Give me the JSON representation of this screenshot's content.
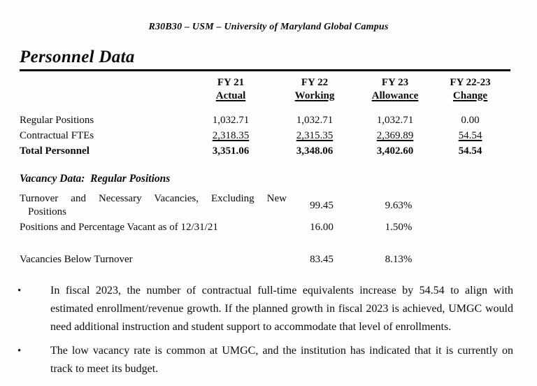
{
  "doc": {
    "header": "R30B30 – USM – University of Maryland Global Campus",
    "title": "Personnel Data"
  },
  "personnel_table": {
    "col_headers": [
      {
        "line1": "FY 21",
        "line2": "Actual"
      },
      {
        "line1": "FY 22",
        "line2": "Working"
      },
      {
        "line1": "FY 23",
        "line2": "Allowance"
      },
      {
        "line1": "FY 22-23",
        "line2": "Change"
      }
    ],
    "rows": [
      {
        "label": "Regular Positions",
        "values": [
          "1,032.71",
          "1,032.71",
          "1,032.71",
          "0.00"
        ]
      },
      {
        "label": "Contractual FTEs",
        "values": [
          "2,318.35",
          "2,315.35",
          "2,369.89",
          "54.54"
        ]
      },
      {
        "label": "Total Personnel",
        "values": [
          "3,351.06",
          "3,348.06",
          "3,402.60",
          "54.54"
        ]
      }
    ]
  },
  "vacancy_section": {
    "heading": "Vacancy Data:  Regular Positions",
    "rows": [
      {
        "label_line1": "Turnover and Necessary Vacancies, Excluding New",
        "label_line2": "Positions",
        "count": "99.45",
        "percent": "9.63%"
      },
      {
        "label_line1": "Positions and Percentage Vacant as of 12/31/21",
        "label_line2": "",
        "count": "16.00",
        "percent": "1.50%"
      },
      {
        "label_line1": "Vacancies Below Turnover",
        "label_line2": "",
        "count": "83.45",
        "percent": "8.13%"
      }
    ]
  },
  "bullets": [
    {
      "marker": "•",
      "text": "In fiscal 2023, the number of contractual full-time equivalents increase by 54.54 to align with estimated enrollment/revenue growth. If the planned growth in fiscal 2023 is achieved, UMGC would need additional instruction and student support to accommodate that level of enrollments."
    },
    {
      "marker": "•",
      "text": "The low vacancy rate is common at UMGC, and the institution has indicated that it is currently on track to meet its budget."
    }
  ],
  "colors": {
    "text": "#0c0c0c",
    "background": "#fdfdfd",
    "rule": "#0c0c0c"
  }
}
